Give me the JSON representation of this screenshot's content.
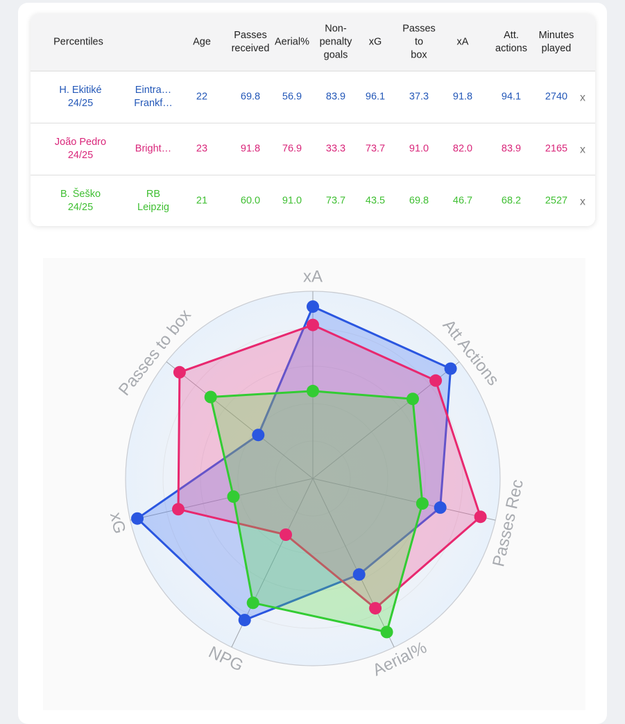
{
  "table": {
    "headers": [
      {
        "key": "percentiles",
        "lines": [
          "Percentiles"
        ]
      },
      {
        "key": "age",
        "lines": [
          "Age"
        ]
      },
      {
        "key": "passes_received",
        "lines": [
          "Passes",
          "received"
        ]
      },
      {
        "key": "aerial",
        "lines": [
          "Aerial%"
        ]
      },
      {
        "key": "npg",
        "lines": [
          "Non-",
          "penalty",
          "goals"
        ]
      },
      {
        "key": "xg",
        "lines": [
          "xG"
        ]
      },
      {
        "key": "passes_box",
        "lines": [
          "Passes",
          "to",
          "box"
        ]
      },
      {
        "key": "xa",
        "lines": [
          "xA"
        ]
      },
      {
        "key": "att_actions",
        "lines": [
          "Att.",
          "actions"
        ]
      },
      {
        "key": "minutes",
        "lines": [
          "Minutes",
          "played"
        ]
      }
    ],
    "remove_label": "x",
    "rows": [
      {
        "color": "#2458b8",
        "player": [
          "H. Ekitiké",
          "24/25"
        ],
        "team": [
          "Eintra…",
          "Frankf…"
        ],
        "values": [
          "22",
          "69.8",
          "56.9",
          "83.9",
          "96.1",
          "37.3",
          "91.8",
          "94.1",
          "2740"
        ]
      },
      {
        "color": "#d9267a",
        "player": [
          "João Pedro",
          "24/25"
        ],
        "team": [
          "Bright…"
        ],
        "values": [
          "23",
          "91.8",
          "76.9",
          "33.3",
          "73.7",
          "91.0",
          "82.0",
          "83.9",
          "2165"
        ]
      },
      {
        "color": "#3fbf32",
        "player": [
          "B. Šeško",
          "24/25"
        ],
        "team": [
          "RB",
          "Leipzig"
        ],
        "values": [
          "21",
          "60.0",
          "91.0",
          "73.7",
          "43.5",
          "69.8",
          "46.7",
          "68.2",
          "2527"
        ]
      }
    ]
  },
  "chart_data": {
    "type": "radar",
    "axes": [
      "xA",
      "Att Actions",
      "Passes Rec",
      "Aerial%",
      "NPG",
      "xG",
      "Passes to box"
    ],
    "range": [
      0,
      100
    ],
    "grid": true,
    "series": [
      {
        "name": "H. Ekitiké 24/25",
        "color": "#2a56e0",
        "fill": "rgba(70,120,245,0.30)",
        "values": [
          91.8,
          94.1,
          69.8,
          56.9,
          83.9,
          96.1,
          37.3
        ]
      },
      {
        "name": "João Pedro 24/25",
        "color": "#e8286f",
        "fill": "rgba(240,80,150,0.30)",
        "values": [
          82.0,
          83.9,
          91.8,
          76.9,
          33.3,
          73.7,
          91.0
        ]
      },
      {
        "name": "B. Šeško 24/25",
        "color": "#33cc33",
        "fill": "rgba(90,220,70,0.30)",
        "values": [
          46.7,
          68.2,
          60.0,
          91.0,
          73.7,
          43.5,
          69.8
        ]
      }
    ]
  }
}
